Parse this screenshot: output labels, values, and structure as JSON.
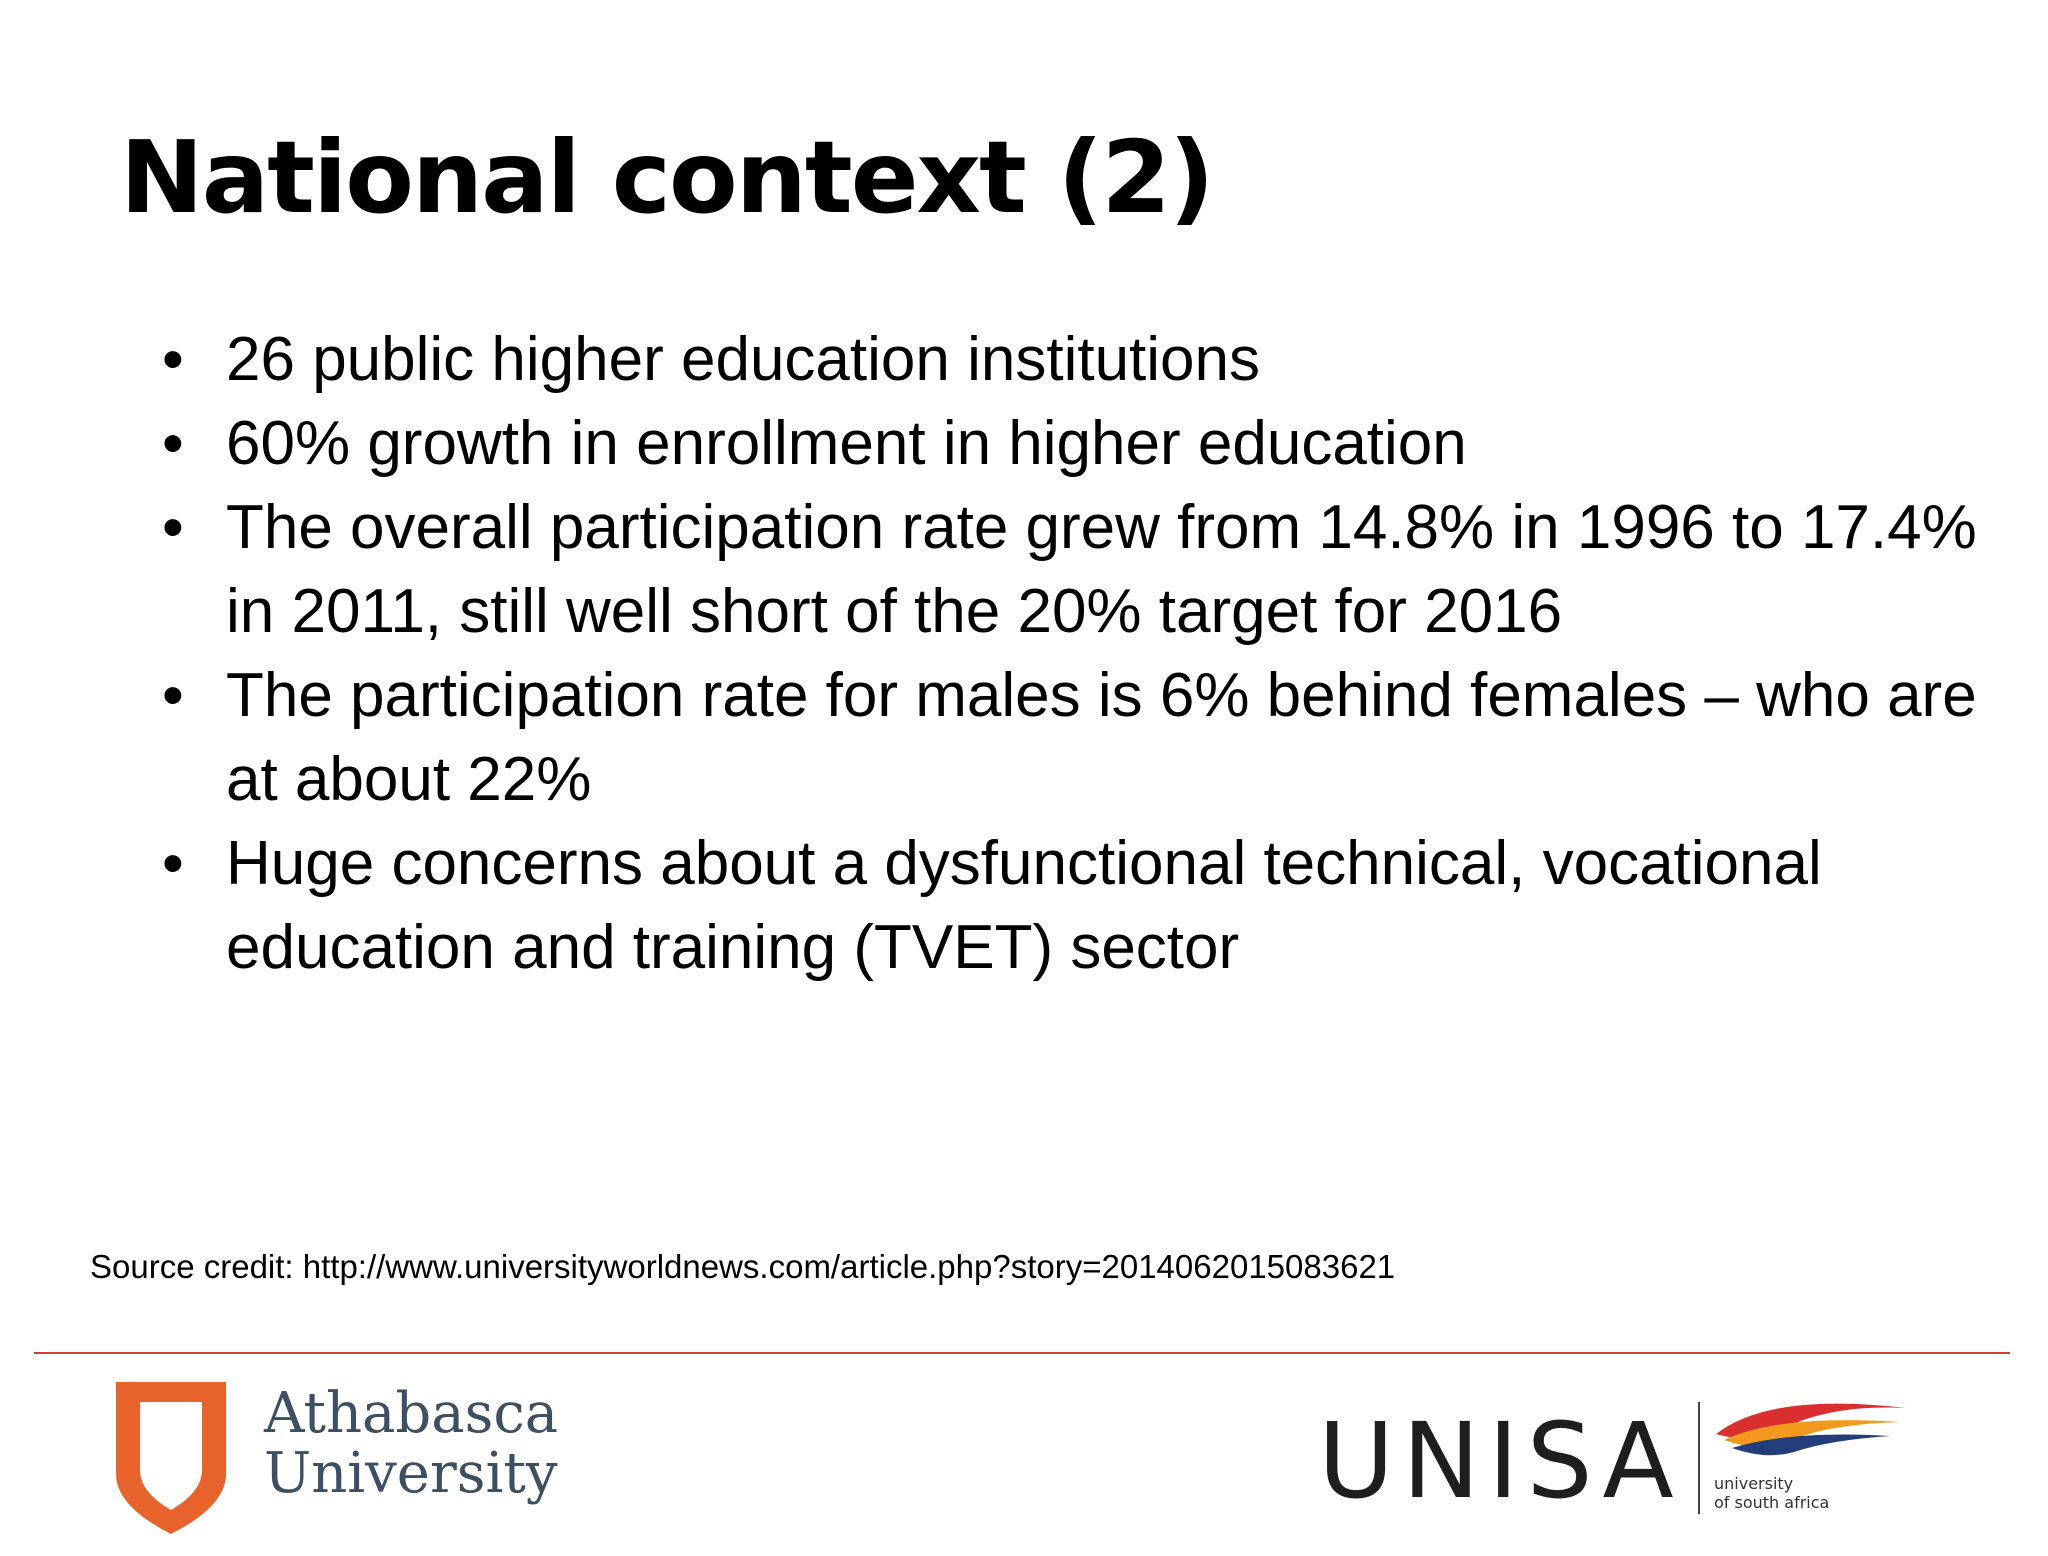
{
  "slide": {
    "title": "National context (2)",
    "bullets": [
      "26 public higher education institutions",
      "60% growth in enrollment in higher education",
      "The overall participation rate grew from 14.8% in 1996 to 17.4% in 2011, still well short of the 20% target for 2016",
      "The participation rate for males is 6% behind females – who are at about 22%",
      "Huge concerns about a dysfunctional technical, vocational education and training (TVET) sector"
    ],
    "bullet_glyph": "•",
    "source_credit": "Source credit: http://www.universityworldnews.com/article.php?story=2014062015083621"
  },
  "footer": {
    "rule_color": "#d73b36",
    "athabasca": {
      "line1": "Athabasca",
      "line2": "University",
      "shield_icon": "athabasca-shield-icon",
      "shield_color": "#e8632b",
      "text_color": "#3d4f63"
    },
    "unisa": {
      "wordmark": "UNISA",
      "tagline_line1": "university",
      "tagline_line2": "of south africa",
      "swoosh_icon": "unisa-swoosh-icon",
      "swoosh_colors": [
        "#d9302f",
        "#f39a1e",
        "#223d7a"
      ]
    }
  }
}
